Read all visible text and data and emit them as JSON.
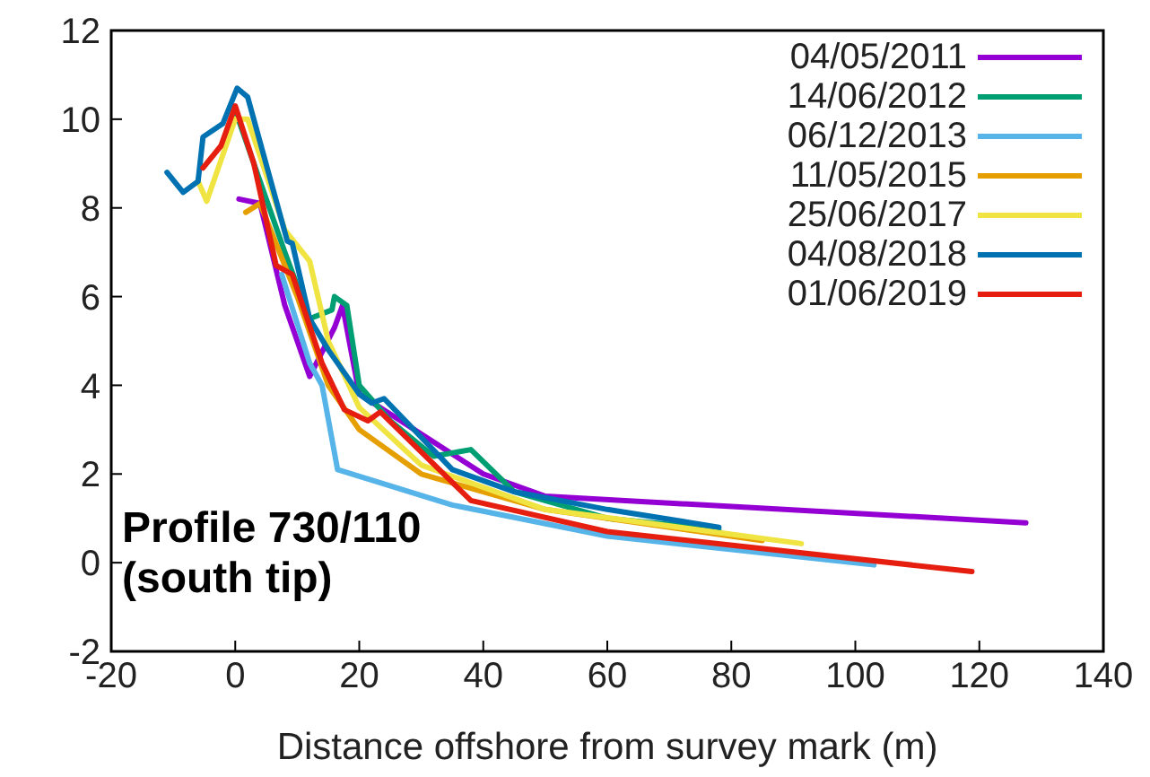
{
  "chart_data": {
    "type": "line",
    "xlabel": "Distance offshore from survey mark (m)",
    "xlim": [
      -20,
      140
    ],
    "xticks": [
      -20,
      0,
      20,
      40,
      60,
      80,
      100,
      120,
      140
    ],
    "ylim": [
      -2,
      12
    ],
    "yticks": [
      -2,
      0,
      2,
      4,
      6,
      8,
      10,
      12
    ],
    "grid": false,
    "legend": "top right",
    "marker": "none",
    "line_style": "solid",
    "annotations": [
      "Profile 730/110\n(south tip)"
    ],
    "series": [
      {
        "name": "04/05/2011",
        "color": "#9400d3",
        "x": [
          0.6,
          4,
          8,
          12,
          16,
          17.3,
          20,
          40,
          50,
          127.5
        ],
        "values": [
          8.2,
          8.1,
          5.8,
          4.2,
          5.3,
          5.8,
          3.8,
          2.0,
          1.5,
          0.9
        ]
      },
      {
        "name": "14/06/2012",
        "color": "#009e73",
        "x": [
          0,
          3,
          8,
          12,
          15.6,
          16,
          18,
          20,
          25,
          32,
          38,
          45,
          60,
          78
        ],
        "values": [
          10.2,
          9.0,
          7.0,
          5.5,
          5.7,
          6.0,
          5.8,
          4.0,
          3.2,
          2.4,
          2.55,
          1.6,
          1.0,
          0.75
        ]
      },
      {
        "name": "06/12/2013",
        "color": "#56b4e9",
        "x": [
          7.5,
          12,
          14,
          16.5,
          35,
          60,
          103
        ],
        "values": [
          6.5,
          4.5,
          4.0,
          2.1,
          1.3,
          0.6,
          -0.05
        ]
      },
      {
        "name": "11/05/2015",
        "color": "#e69f00",
        "x": [
          1.7,
          4,
          10,
          15,
          20,
          30,
          50,
          85
        ],
        "values": [
          7.9,
          8.1,
          6.0,
          4.0,
          3.0,
          2.0,
          1.2,
          0.5
        ]
      },
      {
        "name": "25/06/2017",
        "color": "#f0e442",
        "x": [
          -6,
          -4.6,
          0,
          2,
          8,
          12,
          15,
          20,
          30,
          50,
          91.3
        ],
        "values": [
          8.6,
          8.15,
          10.0,
          10.0,
          7.5,
          6.8,
          5.0,
          3.5,
          2.2,
          1.2,
          0.43
        ]
      },
      {
        "name": "04/08/2018",
        "color": "#0072b2",
        "x": [
          -11,
          -8.4,
          -6,
          -5.2,
          -2,
          0.3,
          2,
          8.4,
          9.2,
          12,
          15,
          20,
          22,
          24,
          35,
          45,
          60,
          78
        ],
        "values": [
          8.8,
          8.35,
          8.6,
          9.6,
          9.9,
          10.7,
          10.5,
          7.25,
          7.2,
          5.5,
          4.8,
          3.8,
          3.6,
          3.7,
          2.1,
          1.6,
          1.2,
          0.8
        ]
      },
      {
        "name": "01/06/2019",
        "color": "#e51e10",
        "x": [
          -5.2,
          -2.3,
          0,
          3,
          6.6,
          9.2,
          14,
          17.6,
          21.4,
          23.4,
          38,
          60,
          118.8
        ],
        "values": [
          8.9,
          9.4,
          10.3,
          9.0,
          6.7,
          6.5,
          4.5,
          3.45,
          3.2,
          3.4,
          1.4,
          0.7,
          -0.2
        ]
      }
    ]
  }
}
